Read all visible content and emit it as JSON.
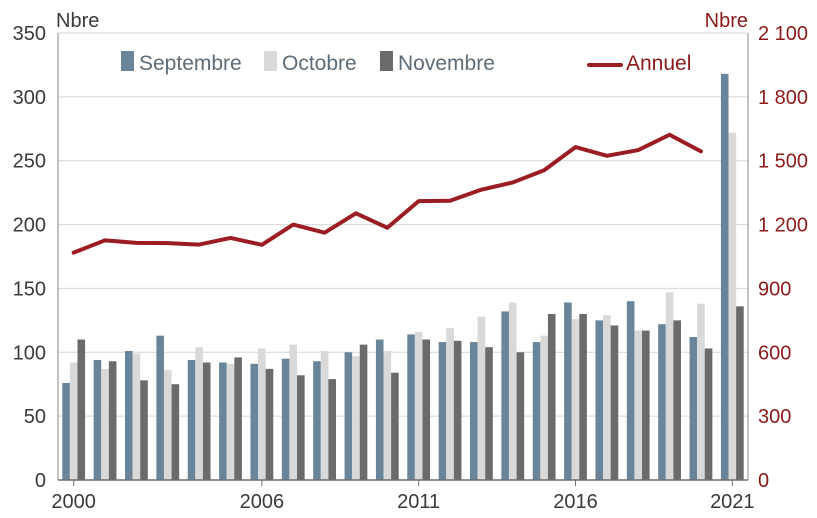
{
  "chart_data": {
    "type": "bar",
    "x": [
      2000,
      2001,
      2002,
      2003,
      2004,
      2005,
      2006,
      2007,
      2008,
      2009,
      2010,
      2011,
      2012,
      2013,
      2014,
      2015,
      2016,
      2017,
      2018,
      2019,
      2020,
      2021
    ],
    "x_tick_labels": [
      {
        "x": 2000,
        "label": "2000"
      },
      {
        "x": 2006,
        "label": "2006"
      },
      {
        "x": 2011,
        "label": "2011"
      },
      {
        "x": 2016,
        "label": "2016"
      },
      {
        "x": 2021,
        "label": "2021"
      }
    ],
    "series": [
      {
        "name": "Septembre",
        "type": "bar",
        "axis": "left",
        "color": "#6a8599",
        "values": [
          76,
          94,
          101,
          113,
          94,
          92,
          91,
          95,
          93,
          100,
          110,
          114,
          108,
          108,
          132,
          108,
          139,
          125,
          140,
          122,
          112,
          318
        ]
      },
      {
        "name": "Octobre",
        "type": "bar",
        "axis": "left",
        "color": "#d9d9d9",
        "values": [
          92,
          87,
          99,
          86,
          104,
          91,
          103,
          106,
          101,
          97,
          101,
          116,
          119,
          128,
          139,
          113,
          126,
          129,
          117,
          147,
          138,
          272
        ]
      },
      {
        "name": "Novembre",
        "type": "bar",
        "axis": "left",
        "color": "#6b6b6b",
        "values": [
          110,
          93,
          78,
          75,
          92,
          96,
          87,
          82,
          79,
          106,
          84,
          110,
          109,
          104,
          100,
          130,
          130,
          121,
          117,
          125,
          103,
          136
        ]
      },
      {
        "name": "Annuel",
        "type": "line",
        "axis": "right",
        "color": "#9b1c22",
        "values": [
          1068,
          1126,
          1114,
          1113,
          1106,
          1137,
          1105,
          1200,
          1162,
          1253,
          1185,
          1310,
          1312,
          1364,
          1398,
          1455,
          1564,
          1523,
          1550,
          1622,
          1544,
          null
        ]
      }
    ],
    "left_axis": {
      "unit": "Nbre",
      "ylim": [
        0,
        350
      ],
      "ticks": [
        0,
        50,
        100,
        150,
        200,
        250,
        300,
        350
      ]
    },
    "right_axis": {
      "unit": "Nbre",
      "ylim": [
        0,
        2100
      ],
      "ticks": [
        0,
        300,
        600,
        900,
        1200,
        1500,
        1800,
        2100
      ],
      "tick_labels": [
        "0",
        "300",
        "600",
        "900",
        "1 200",
        "1 500",
        "1 800",
        "2 100"
      ]
    },
    "grid": "horizontal",
    "legend_placement": "top",
    "title": "",
    "xlabel": ""
  }
}
